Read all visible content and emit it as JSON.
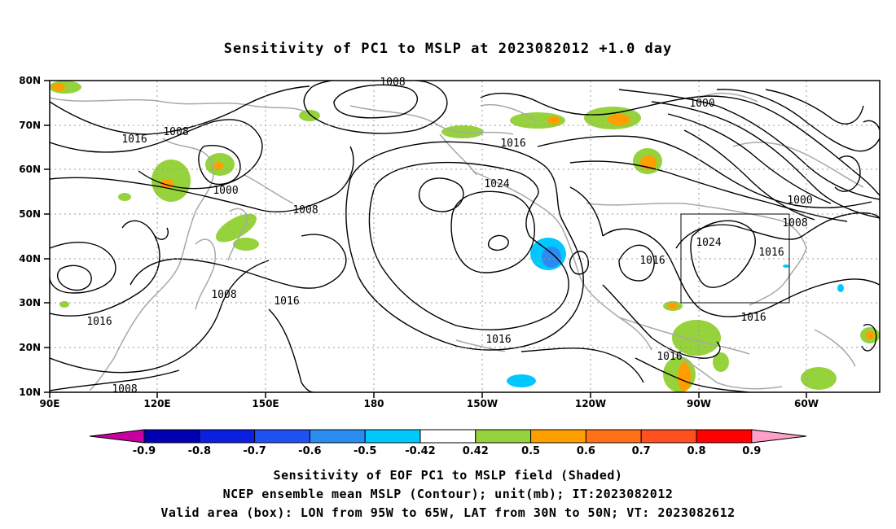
{
  "title": "Sensitivity of PC1 to MSLP at 2023082012 +1.0 day",
  "lat_labels": [
    "80N",
    "70N",
    "60N",
    "50N",
    "40N",
    "30N",
    "20N",
    "10N"
  ],
  "lon_labels": [
    "90E",
    "120E",
    "150E",
    "180",
    "150W",
    "120W",
    "90W",
    "60W"
  ],
  "contour_labels": [
    {
      "text": "1008"
    },
    {
      "text": "1016"
    },
    {
      "text": "1008"
    },
    {
      "text": "1000"
    },
    {
      "text": "1008"
    },
    {
      "text": "1016"
    },
    {
      "text": "1008"
    },
    {
      "text": "1016"
    },
    {
      "text": "1024"
    },
    {
      "text": "1016"
    },
    {
      "text": "1016"
    },
    {
      "text": "1000"
    },
    {
      "text": "1000"
    },
    {
      "text": "1008"
    },
    {
      "text": "1024"
    },
    {
      "text": "1016"
    },
    {
      "text": "1016"
    },
    {
      "text": "1016"
    },
    {
      "text": "1016"
    },
    {
      "text": "1008"
    },
    {
      "text": "1008"
    }
  ],
  "colorbar": {
    "labels": [
      "-0.9",
      "-0.8",
      "-0.7",
      "-0.6",
      "-0.5",
      "-0.42",
      "0.42",
      "0.5",
      "0.6",
      "0.7",
      "0.8",
      "0.9"
    ],
    "colors": [
      "#0000b0",
      "#0a1fe0",
      "#1f50f0",
      "#2a8cf0",
      "#00c8ff",
      "#ffffff",
      "#96d23c",
      "#ff9e00",
      "#ff7018",
      "#ff5020",
      "#ff0000"
    ],
    "left_tip": "#c800a0",
    "right_tip": "#ffa0c8"
  },
  "captions": [
    "Sensitivity of EOF PC1 to MSLP field (Shaded)",
    "NCEP ensemble mean MSLP (Contour); unit(mb); IT:2023082012",
    "Valid area (box): LON from 95W to 65W, LAT from 30N to 50N; VT: 2023082612"
  ]
}
